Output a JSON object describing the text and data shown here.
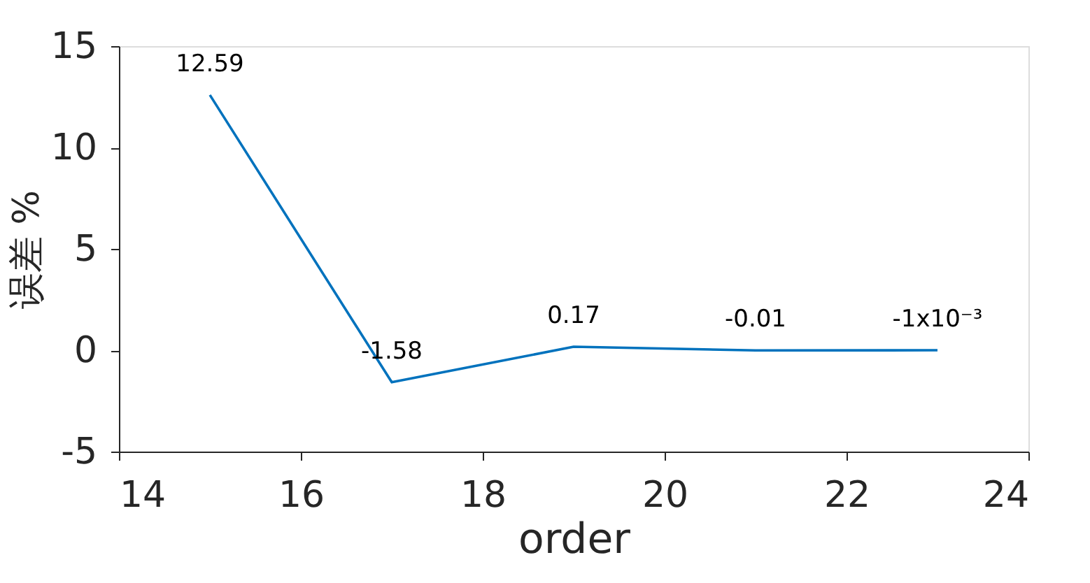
{
  "chart_data": {
    "type": "line",
    "xlabel": "order",
    "ylabel": "误差 %",
    "x": [
      15,
      17,
      19,
      21,
      23
    ],
    "series": [
      {
        "color": "#0072bd",
        "values": [
          12.59,
          -1.58,
          0.17,
          -0.01,
          -0.001
        ],
        "value_labels": [
          "12.59",
          "-1.58",
          "0.17",
          "-0.01",
          "-1x10⁻³"
        ]
      }
    ],
    "xlim": [
      14,
      24
    ],
    "xticks": [
      14,
      16,
      18,
      20,
      22,
      24
    ],
    "ylim": [
      -5,
      15
    ],
    "yticks": [
      -5,
      0,
      5,
      10,
      15
    ],
    "grid": false,
    "marker": "none",
    "line_style": "solid"
  }
}
